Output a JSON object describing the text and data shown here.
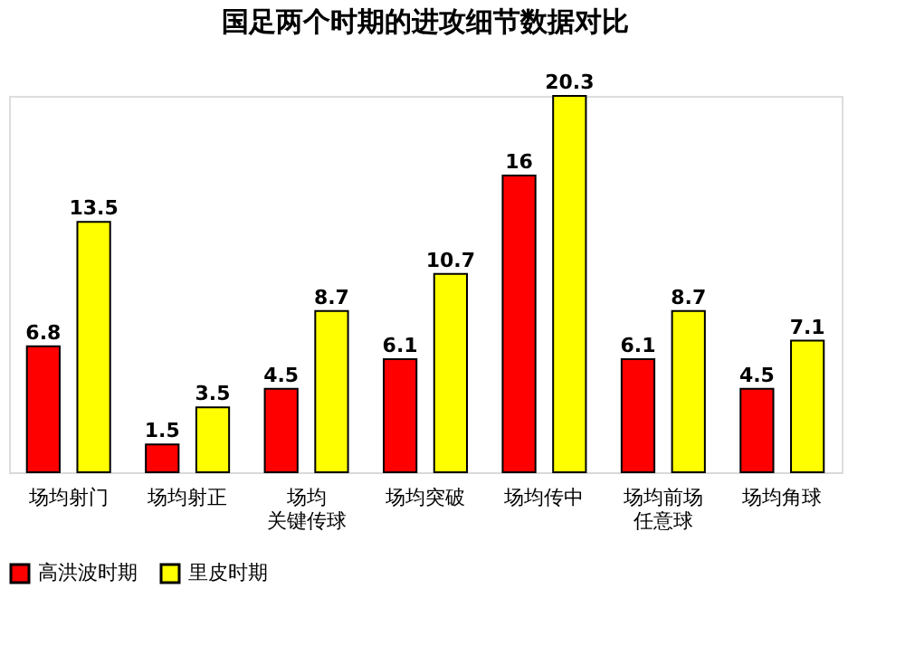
{
  "chart_data": {
    "type": "bar",
    "title": "国足两个时期的进攻细节数据对比",
    "categories": [
      "场均射门",
      "场均射正",
      "场均关键传球",
      "场均突破",
      "场均传中",
      "场均前场任意球",
      "场均角球"
    ],
    "series": [
      {
        "name": "高洪波时期",
        "color": "#ff0000",
        "values": [
          6.8,
          1.5,
          4.5,
          6.1,
          16,
          6.1,
          4.5
        ]
      },
      {
        "name": "里皮时期",
        "color": "#ffff00",
        "values": [
          13.5,
          3.5,
          8.7,
          10.7,
          20.3,
          8.7,
          7.1
        ]
      }
    ],
    "data_labels": true,
    "legend": "bottom"
  }
}
